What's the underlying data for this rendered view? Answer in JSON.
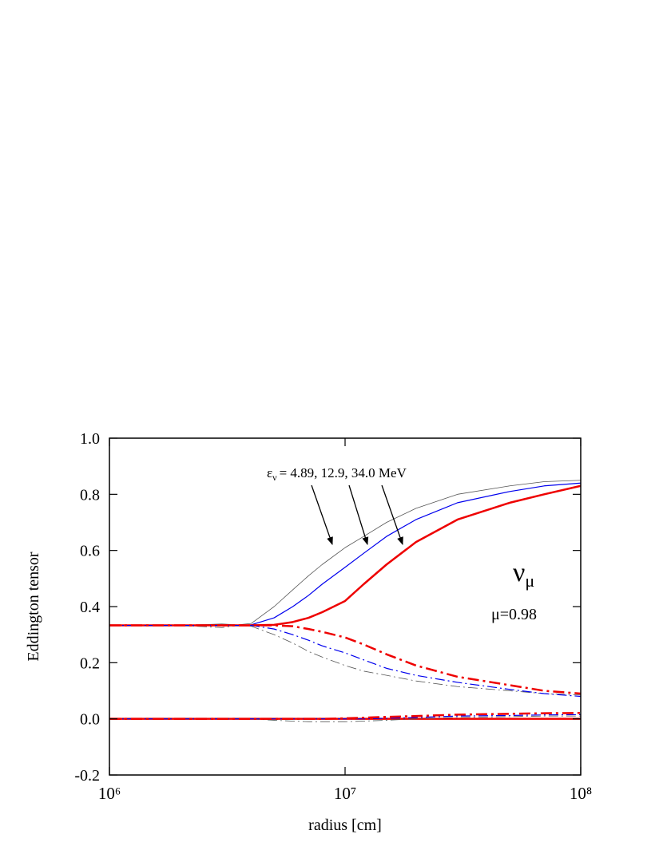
{
  "chart_data": {
    "type": "line",
    "xlabel": "radius [cm]",
    "ylabel": "Eddington tensor",
    "xscale": "log",
    "xlim": [
      1000000,
      100000000
    ],
    "xticks": [
      {
        "value": 1000000,
        "label": "10⁶"
      },
      {
        "value": 10000000,
        "label": "10⁷"
      },
      {
        "value": 100000000,
        "label": "10⁸"
      }
    ],
    "ylim": [
      -0.2,
      1.0
    ],
    "yticks": [
      {
        "value": -0.2,
        "label": "-0.2"
      },
      {
        "value": 0,
        "label": "0.0"
      },
      {
        "value": 0.2,
        "label": "0.2"
      },
      {
        "value": 0.4,
        "label": "0.4"
      },
      {
        "value": 0.6,
        "label": "0.6"
      },
      {
        "value": 0.8,
        "label": "0.8"
      },
      {
        "value": 1.0,
        "label": "1.0"
      }
    ],
    "annotations": {
      "energy_symbol": "ε",
      "energy_subscript": "ν",
      "energy_text": "=  4.89, 12.9, 34.0 MeV",
      "flavor_symbol": "ν",
      "flavor_subscript": "μ",
      "mu_text": "μ=0.98"
    },
    "x": [
      1000000,
      2000000,
      3000000,
      3500000,
      4000000,
      5000000,
      6000000,
      7000000,
      8000000,
      10000000,
      12000000,
      15000000,
      20000000,
      30000000,
      50000000,
      70000000,
      100000000
    ],
    "series": [
      {
        "color": "#555555",
        "style": "solid",
        "width": 0.8,
        "values": [
          0.333,
          0.333,
          0.338,
          0.335,
          0.34,
          0.4,
          0.46,
          0.51,
          0.55,
          0.61,
          0.65,
          0.7,
          0.75,
          0.8,
          0.83,
          0.845,
          0.85
        ]
      },
      {
        "color": "#0000ee",
        "style": "solid",
        "width": 1.2,
        "values": [
          0.333,
          0.333,
          0.333,
          0.333,
          0.335,
          0.36,
          0.4,
          0.44,
          0.48,
          0.54,
          0.59,
          0.65,
          0.71,
          0.77,
          0.81,
          0.83,
          0.84
        ]
      },
      {
        "color": "#ee0000",
        "style": "solid",
        "width": 2.5,
        "values": [
          0.333,
          0.333,
          0.333,
          0.333,
          0.333,
          0.335,
          0.345,
          0.36,
          0.38,
          0.42,
          0.48,
          0.55,
          0.63,
          0.71,
          0.77,
          0.8,
          0.83
        ]
      },
      {
        "color": "#555555",
        "style": "dashdot",
        "width": 0.8,
        "values": [
          0.333,
          0.333,
          0.325,
          0.333,
          0.33,
          0.3,
          0.27,
          0.24,
          0.22,
          0.19,
          0.17,
          0.155,
          0.135,
          0.115,
          0.1,
          0.09,
          0.085
        ]
      },
      {
        "color": "#0000ee",
        "style": "dashdot",
        "width": 1.2,
        "values": [
          0.333,
          0.333,
          0.333,
          0.333,
          0.333,
          0.32,
          0.3,
          0.28,
          0.26,
          0.235,
          0.21,
          0.18,
          0.155,
          0.13,
          0.105,
          0.09,
          0.08
        ]
      },
      {
        "color": "#ee0000",
        "style": "dashdot",
        "width": 2.5,
        "values": [
          0.333,
          0.333,
          0.333,
          0.333,
          0.333,
          0.333,
          0.33,
          0.32,
          0.31,
          0.29,
          0.265,
          0.23,
          0.19,
          0.15,
          0.12,
          0.1,
          0.09
        ]
      },
      {
        "color": "#555555",
        "style": "solid",
        "width": 0.8,
        "values": [
          0,
          0,
          0,
          0,
          0,
          0,
          0,
          0,
          0,
          0,
          0,
          0,
          0,
          0,
          0,
          0,
          0
        ]
      },
      {
        "color": "#ee0000",
        "style": "solid",
        "width": 2.5,
        "values": [
          0,
          0,
          0,
          0,
          0,
          0,
          0,
          0,
          0,
          0,
          0,
          0,
          0,
          0,
          0,
          0,
          0
        ]
      },
      {
        "color": "#555555",
        "style": "dashdot",
        "width": 0.8,
        "values": [
          0,
          0,
          0,
          0,
          0,
          -0.005,
          -0.008,
          -0.01,
          -0.01,
          -0.01,
          -0.008,
          -0.005,
          0,
          0.005,
          0.008,
          0.01,
          0.01
        ]
      },
      {
        "color": "#0000ee",
        "style": "dashdot",
        "width": 1.2,
        "values": [
          0,
          0,
          0,
          0,
          0,
          0,
          0,
          0,
          0,
          0,
          0,
          0.002,
          0.005,
          0.01,
          0.012,
          0.014,
          0.015
        ]
      },
      {
        "color": "#ee0000",
        "style": "dashdot",
        "width": 2.5,
        "values": [
          0,
          0,
          0,
          0,
          0,
          0,
          0,
          0,
          0,
          0.002,
          0.004,
          0.007,
          0.01,
          0.015,
          0.018,
          0.02,
          0.021
        ]
      }
    ]
  }
}
